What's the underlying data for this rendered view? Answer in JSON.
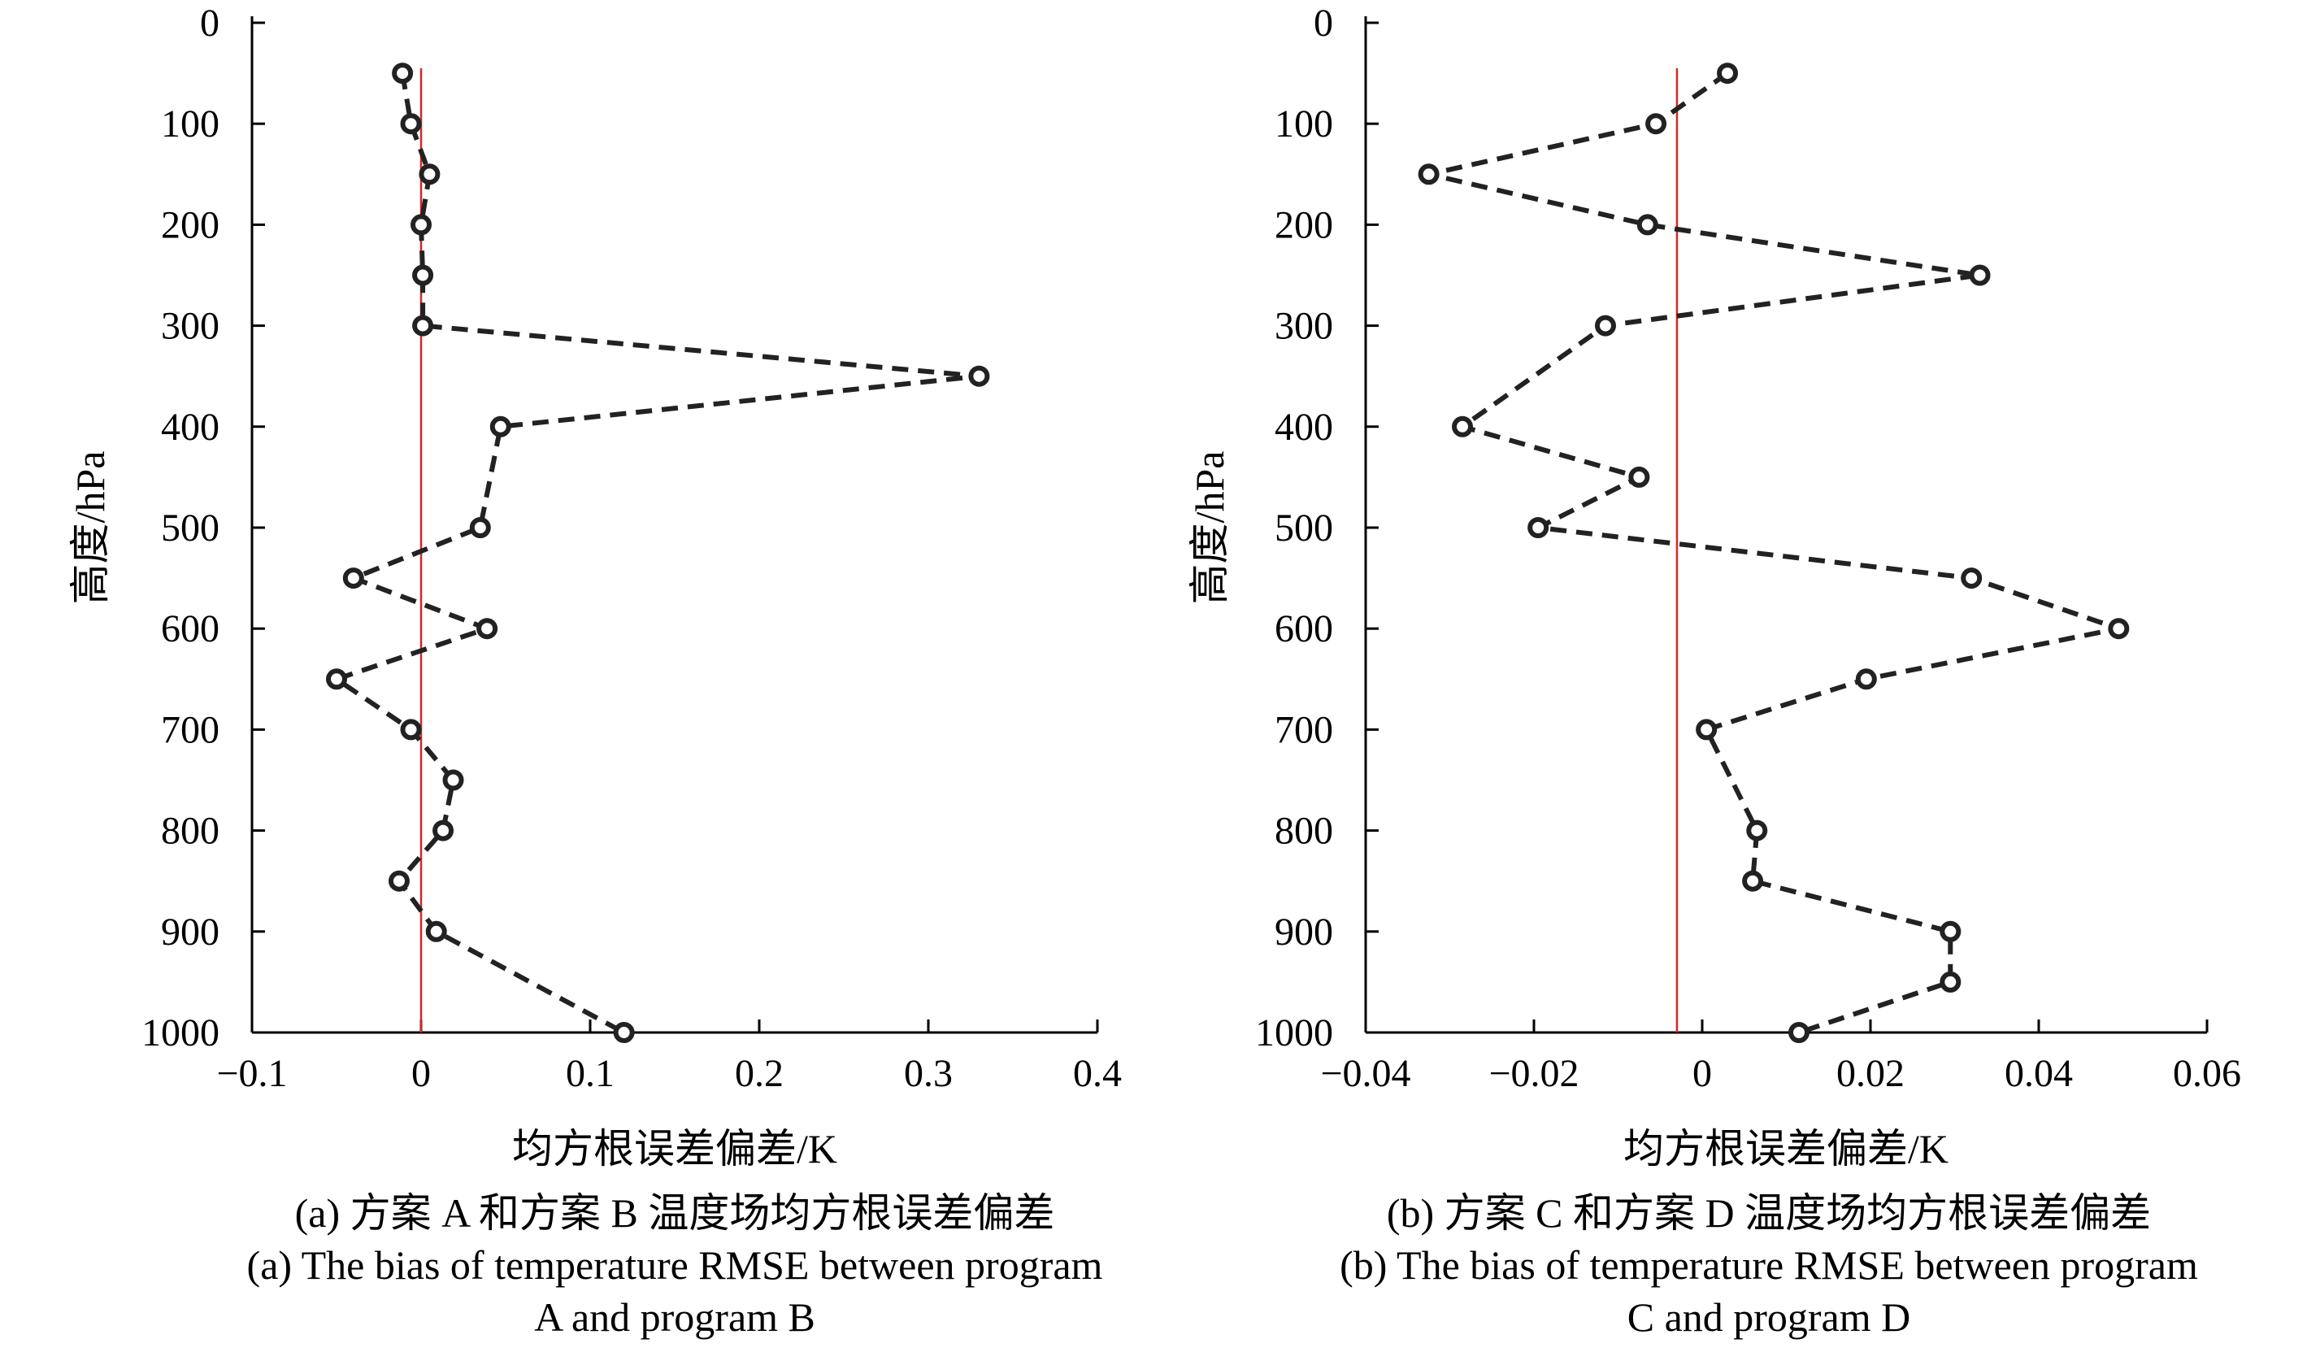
{
  "chart_data": [
    {
      "type": "line",
      "panel": "a",
      "xlabel": "均方根误差偏差/K",
      "ylabel": "高度/hPa",
      "xlim": [
        -0.1,
        0.4
      ],
      "ylim": [
        1000,
        0
      ],
      "xticks": [
        -0.1,
        0,
        0.1,
        0.2,
        0.3,
        0.4
      ],
      "xtick_labels": [
        "−0.1",
        "0",
        "0.1",
        "0.2",
        "0.3",
        "0.4"
      ],
      "yticks": [
        0,
        100,
        200,
        300,
        400,
        500,
        600,
        700,
        800,
        900,
        1000
      ],
      "ytick_labels": [
        "0",
        "100",
        "200",
        "300",
        "400",
        "500",
        "600",
        "700",
        "800",
        "900",
        "1000"
      ],
      "reference_line_x": 0,
      "reference_line_color": "#d62728",
      "series_color": "#222222",
      "series": [
        {
          "name": "A-B bias",
          "x": [
            -0.011,
            -0.006,
            0.005,
            0.0,
            0.001,
            0.001,
            0.33,
            0.047,
            0.035,
            -0.04,
            0.039,
            -0.05,
            -0.006,
            0.019,
            0.013,
            -0.013,
            0.009,
            0.12
          ],
          "y": [
            50,
            100,
            150,
            200,
            250,
            300,
            350,
            400,
            500,
            550,
            600,
            650,
            700,
            750,
            800,
            850,
            900,
            1000
          ]
        }
      ],
      "caption_cn": "(a) 方案 A 和方案 B 温度场均方根误差偏差",
      "caption_en_1": "(a) The bias of temperature RMSE between program",
      "caption_en_2": "A and program B"
    },
    {
      "type": "line",
      "panel": "b",
      "xlabel": "均方根误差偏差/K",
      "ylabel": "高度/hPa",
      "xlim": [
        -0.04,
        0.06
      ],
      "ylim": [
        1000,
        0
      ],
      "xticks": [
        -0.04,
        -0.02,
        0,
        0.02,
        0.04,
        0.06
      ],
      "xtick_labels": [
        "−0.04",
        "−0.02",
        "0",
        "0.02",
        "0.04",
        "0.06"
      ],
      "yticks": [
        0,
        100,
        200,
        300,
        400,
        500,
        600,
        700,
        800,
        900,
        1000
      ],
      "ytick_labels": [
        "0",
        "100",
        "200",
        "300",
        "400",
        "500",
        "600",
        "700",
        "800",
        "900",
        "1000"
      ],
      "reference_line_x": -0.003,
      "reference_line_color": "#d62728",
      "series_color": "#222222",
      "series": [
        {
          "name": "C-D bias",
          "x": [
            0.003,
            -0.0055,
            -0.0325,
            -0.0065,
            0.033,
            -0.0115,
            -0.0285,
            -0.0075,
            -0.0195,
            0.032,
            0.0495,
            0.0195,
            0.0005,
            0.0065,
            0.006,
            0.0295,
            0.0295,
            0.0115
          ],
          "y": [
            50,
            100,
            150,
            200,
            250,
            300,
            400,
            450,
            500,
            550,
            600,
            650,
            700,
            800,
            850,
            900,
            950,
            1000
          ]
        }
      ],
      "caption_cn": "(b) 方案 C 和方案 D 温度场均方根误差偏差",
      "caption_en_1": "(b) The bias of temperature RMSE between program",
      "caption_en_2": "C and program D"
    }
  ]
}
